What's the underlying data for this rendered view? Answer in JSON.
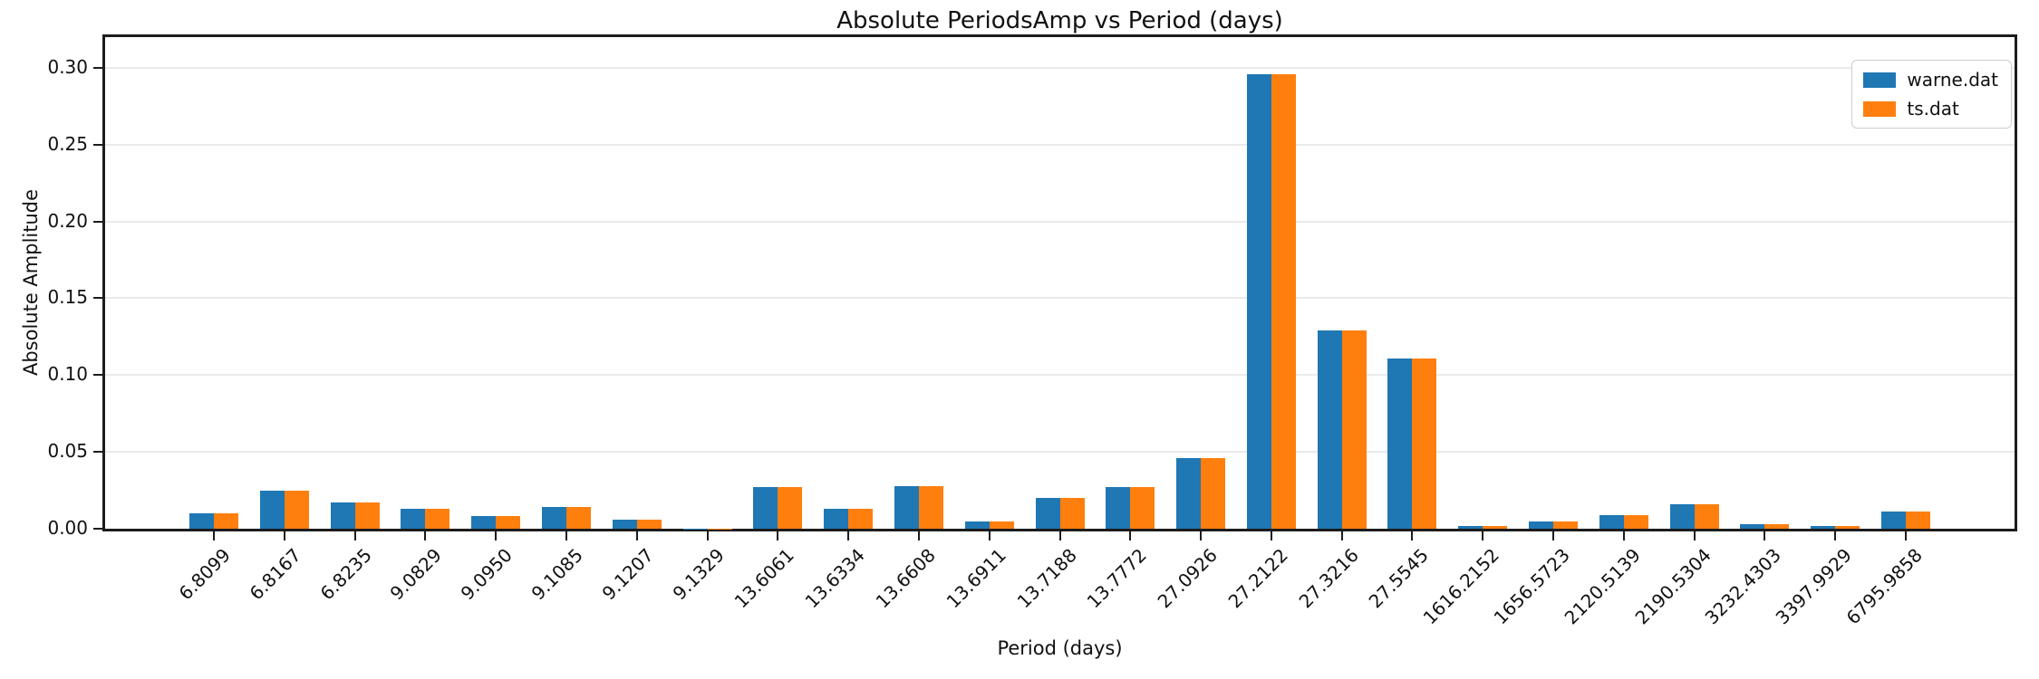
{
  "figure": {
    "title": "Absolute PeriodsAmp vs Period (days)",
    "xlabel": "Period (days)",
    "ylabel": "Absolute Amplitude"
  },
  "legend": {
    "entries": [
      {
        "label": "warne.dat",
        "color": "#1f77b4"
      },
      {
        "label": "ts.dat",
        "color": "#ff7f0e"
      }
    ]
  },
  "chart_data": {
    "type": "bar",
    "title": "Absolute PeriodsAmp vs Period (days)",
    "xlabel": "Period (days)",
    "ylabel": "Absolute Amplitude",
    "categories": [
      "6.8099",
      "6.8167",
      "6.8235",
      "9.0829",
      "9.0950",
      "9.1085",
      "9.1207",
      "9.1329",
      "13.6061",
      "13.6334",
      "13.6608",
      "13.6911",
      "13.7188",
      "13.7772",
      "27.0926",
      "27.2122",
      "27.3216",
      "27.5545",
      "1616.2152",
      "1656.5723",
      "2120.5139",
      "2190.5304",
      "3232.4303",
      "3397.9929",
      "6795.9858"
    ],
    "series": [
      {
        "name": "warne.dat",
        "color": "#1f77b4",
        "values": [
          0.01,
          0.025,
          0.017,
          0.013,
          0.008,
          0.014,
          0.006,
          0.0002,
          0.027,
          0.013,
          0.028,
          0.005,
          0.02,
          0.027,
          0.046,
          0.296,
          0.129,
          0.111,
          0.002,
          0.005,
          0.009,
          0.016,
          0.003,
          0.002,
          0.011
        ]
      },
      {
        "name": "ts.dat",
        "color": "#ff7f0e",
        "values": [
          0.01,
          0.025,
          0.017,
          0.013,
          0.008,
          0.014,
          0.006,
          0.0002,
          0.027,
          0.013,
          0.028,
          0.005,
          0.02,
          0.027,
          0.046,
          0.296,
          0.129,
          0.111,
          0.002,
          0.005,
          0.009,
          0.016,
          0.003,
          0.002,
          0.011
        ]
      }
    ],
    "ylim": [
      0,
      0.32
    ],
    "yticks": [
      "0.00",
      "0.05",
      "0.10",
      "0.15",
      "0.20",
      "0.25",
      "0.30"
    ],
    "grid": "horizontal",
    "legend_position": "upper right",
    "bar_orientation": "vertical",
    "xtick_rotation": 45
  }
}
